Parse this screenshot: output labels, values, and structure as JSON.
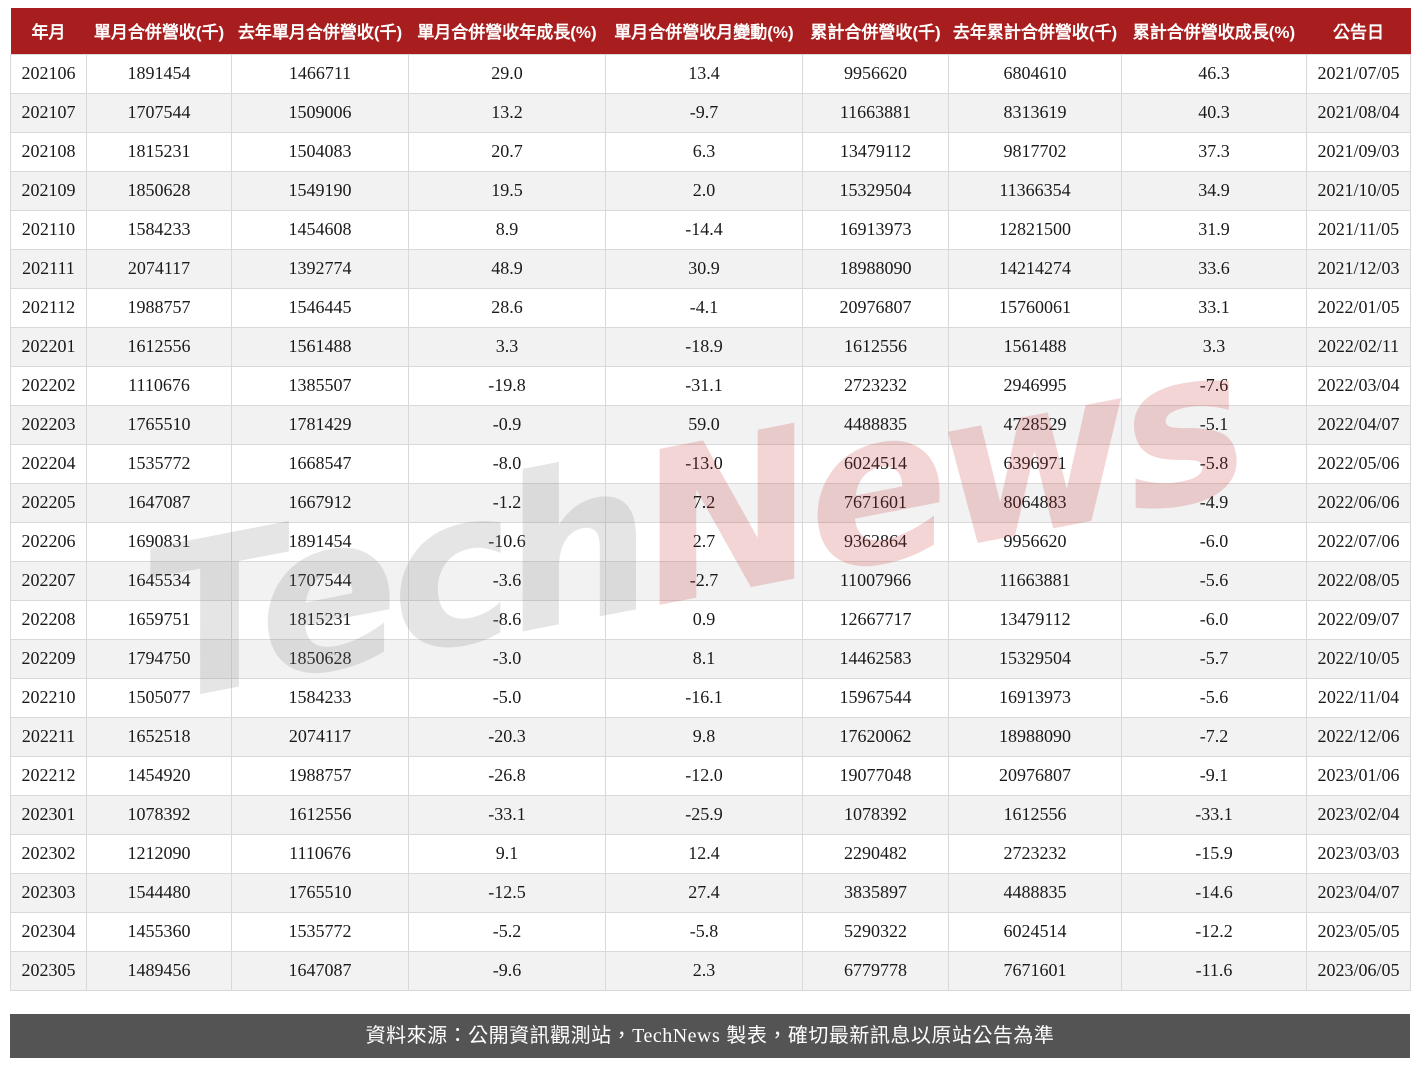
{
  "chart_data": {
    "type": "table",
    "columns": [
      "年月",
      "單月合併營收(千)",
      "去年單月合併營收(千)",
      "單月合併營收年成長(%)",
      "單月合併營收月變動(%)",
      "累計合併營收(千)",
      "去年累計合併營收(千)",
      "累計合併營收成長(%)",
      "公告日"
    ],
    "rows": [
      [
        "202106",
        "1891454",
        "1466711",
        "29.0",
        "13.4",
        "9956620",
        "6804610",
        "46.3",
        "2021/07/05"
      ],
      [
        "202107",
        "1707544",
        "1509006",
        "13.2",
        "-9.7",
        "11663881",
        "8313619",
        "40.3",
        "2021/08/04"
      ],
      [
        "202108",
        "1815231",
        "1504083",
        "20.7",
        "6.3",
        "13479112",
        "9817702",
        "37.3",
        "2021/09/03"
      ],
      [
        "202109",
        "1850628",
        "1549190",
        "19.5",
        "2.0",
        "15329504",
        "11366354",
        "34.9",
        "2021/10/05"
      ],
      [
        "202110",
        "1584233",
        "1454608",
        "8.9",
        "-14.4",
        "16913973",
        "12821500",
        "31.9",
        "2021/11/05"
      ],
      [
        "202111",
        "2074117",
        "1392774",
        "48.9",
        "30.9",
        "18988090",
        "14214274",
        "33.6",
        "2021/12/03"
      ],
      [
        "202112",
        "1988757",
        "1546445",
        "28.6",
        "-4.1",
        "20976807",
        "15760061",
        "33.1",
        "2022/01/05"
      ],
      [
        "202201",
        "1612556",
        "1561488",
        "3.3",
        "-18.9",
        "1612556",
        "1561488",
        "3.3",
        "2022/02/11"
      ],
      [
        "202202",
        "1110676",
        "1385507",
        "-19.8",
        "-31.1",
        "2723232",
        "2946995",
        "-7.6",
        "2022/03/04"
      ],
      [
        "202203",
        "1765510",
        "1781429",
        "-0.9",
        "59.0",
        "4488835",
        "4728529",
        "-5.1",
        "2022/04/07"
      ],
      [
        "202204",
        "1535772",
        "1668547",
        "-8.0",
        "-13.0",
        "6024514",
        "6396971",
        "-5.8",
        "2022/05/06"
      ],
      [
        "202205",
        "1647087",
        "1667912",
        "-1.2",
        "7.2",
        "7671601",
        "8064883",
        "-4.9",
        "2022/06/06"
      ],
      [
        "202206",
        "1690831",
        "1891454",
        "-10.6",
        "2.7",
        "9362864",
        "9956620",
        "-6.0",
        "2022/07/06"
      ],
      [
        "202207",
        "1645534",
        "1707544",
        "-3.6",
        "-2.7",
        "11007966",
        "11663881",
        "-5.6",
        "2022/08/05"
      ],
      [
        "202208",
        "1659751",
        "1815231",
        "-8.6",
        "0.9",
        "12667717",
        "13479112",
        "-6.0",
        "2022/09/07"
      ],
      [
        "202209",
        "1794750",
        "1850628",
        "-3.0",
        "8.1",
        "14462583",
        "15329504",
        "-5.7",
        "2022/10/05"
      ],
      [
        "202210",
        "1505077",
        "1584233",
        "-5.0",
        "-16.1",
        "15967544",
        "16913973",
        "-5.6",
        "2022/11/04"
      ],
      [
        "202211",
        "1652518",
        "2074117",
        "-20.3",
        "9.8",
        "17620062",
        "18988090",
        "-7.2",
        "2022/12/06"
      ],
      [
        "202212",
        "1454920",
        "1988757",
        "-26.8",
        "-12.0",
        "19077048",
        "20976807",
        "-9.1",
        "2023/01/06"
      ],
      [
        "202301",
        "1078392",
        "1612556",
        "-33.1",
        "-25.9",
        "1078392",
        "1612556",
        "-33.1",
        "2023/02/04"
      ],
      [
        "202302",
        "1212090",
        "1110676",
        "9.1",
        "12.4",
        "2290482",
        "2723232",
        "-15.9",
        "2023/03/03"
      ],
      [
        "202303",
        "1544480",
        "1765510",
        "-12.5",
        "27.4",
        "3835897",
        "4488835",
        "-14.6",
        "2023/04/07"
      ],
      [
        "202304",
        "1455360",
        "1535772",
        "-5.2",
        "-5.8",
        "5290322",
        "6024514",
        "-12.2",
        "2023/05/05"
      ],
      [
        "202305",
        "1489456",
        "1647087",
        "-9.6",
        "2.3",
        "6779778",
        "7671601",
        "-11.6",
        "2023/06/05"
      ]
    ]
  },
  "watermark": {
    "part1": "Tech",
    "part2": "News"
  },
  "footer": {
    "prefix": "資料來源：公開資訊觀測站，",
    "brand": "TechNews",
    "suffix": " 製表，確切最新訊息以原站公告為準"
  },
  "colors": {
    "header_bg": "#a81e1e",
    "footer_bg": "#545454",
    "row_alt": "#f2f2f2",
    "watermark_gray": "rgba(125,125,125,0.20)",
    "watermark_red": "rgba(195,45,45,0.20)"
  }
}
